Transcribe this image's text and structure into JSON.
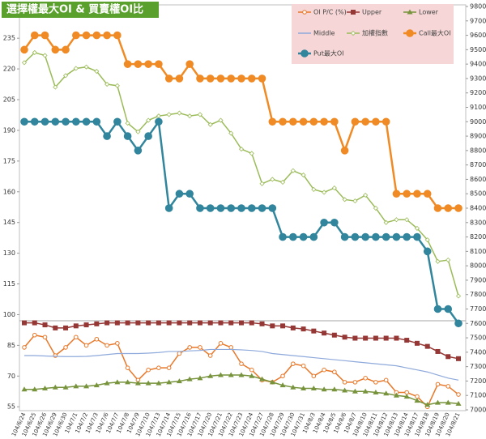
{
  "chart_data": {
    "type": "line",
    "title": "選擇權最大OI & 買賣權OI比",
    "categories": [
      "104/6/24",
      "104/6/25",
      "104/6/26",
      "104/6/29",
      "104/6/30",
      "104/7/1",
      "104/7/2",
      "104/7/3",
      "104/7/6",
      "104/7/7",
      "104/7/8",
      "104/7/9",
      "104/7/10",
      "104/7/13",
      "104/7/14",
      "104/7/15",
      "104/7/16",
      "104/7/17",
      "104/7/20",
      "104/7/21",
      "104/7/22",
      "104/7/23",
      "104/7/24",
      "104/7/27",
      "104/7/28",
      "104/7/29",
      "104/7/30",
      "104/7/31",
      "104/8/3",
      "104/8/4",
      "104/8/5",
      "104/8/6",
      "104/8/7",
      "104/8/10",
      "104/8/11",
      "104/8/12",
      "104/8/13",
      "104/8/14",
      "104/8/17",
      "104/8/18",
      "104/8/19",
      "104/8/20",
      "104/8/21"
    ],
    "ylim": [
      53.5,
      250.5
    ],
    "yticks": [
      55,
      70,
      85,
      100,
      115,
      130,
      145,
      160,
      175,
      190,
      205,
      220,
      235
    ],
    "y2lim": [
      7000,
      9800
    ],
    "y2ticks": [
      7000,
      7100,
      7200,
      7300,
      7400,
      7500,
      7600,
      7700,
      7800,
      7900,
      8000,
      8100,
      8200,
      8300,
      8400,
      8500,
      8600,
      8700,
      8800,
      8900,
      9000,
      9100,
      9200,
      9300,
      9400,
      9500,
      9600,
      9700,
      9800
    ],
    "series": [
      {
        "name": "OI P/C (%)",
        "color": "#e8782a",
        "marker": "circle",
        "axis": "y",
        "values": [
          84,
          90,
          89,
          80,
          84,
          89,
          85,
          88,
          85,
          86,
          74,
          68,
          73,
          74,
          74,
          81,
          84,
          84,
          80,
          86,
          84,
          76,
          73,
          68,
          67,
          70,
          76,
          75,
          70,
          73,
          72,
          67,
          67,
          69,
          67,
          68,
          62,
          62,
          60,
          55,
          66,
          65,
          61
        ]
      },
      {
        "name": "Upper",
        "color": "#953735",
        "marker": "square",
        "axis": "y",
        "values": [
          96,
          96,
          95,
          93.5,
          93.5,
          94.5,
          95,
          95.5,
          96,
          96,
          96,
          96,
          96,
          96,
          96,
          96,
          96,
          96,
          96,
          96,
          96,
          96,
          96,
          95.5,
          94.5,
          94.5,
          93.5,
          93,
          92,
          91,
          90,
          89,
          88.5,
          88.5,
          88.5,
          88.5,
          88.5,
          87.5,
          86,
          84.5,
          82,
          79.5,
          78.5
        ]
      },
      {
        "name": "Lower",
        "color": "#77933c",
        "marker": "triangle",
        "axis": "y",
        "values": [
          63.5,
          63.5,
          64,
          64.5,
          64.5,
          65,
          65,
          65.5,
          66.5,
          67,
          67,
          66.5,
          66.5,
          66.5,
          67,
          67.5,
          68.5,
          69,
          70,
          70.5,
          70.5,
          70.5,
          70,
          68.5,
          67,
          65.5,
          64.5,
          64,
          64,
          63.5,
          63.5,
          63,
          62.5,
          62.5,
          62,
          61.5,
          60.5,
          60,
          58,
          56,
          57,
          57,
          56.5
        ]
      },
      {
        "name": "Middle",
        "color": "#8ea9db",
        "marker": "none",
        "axis": "y",
        "values": [
          80,
          80,
          79.8,
          79.6,
          79.5,
          79.5,
          79.6,
          80,
          80.5,
          81,
          81,
          81,
          81.2,
          81.5,
          82,
          82,
          82.3,
          82.5,
          83,
          83,
          83,
          82.8,
          82.5,
          82,
          81,
          80.5,
          80,
          79.5,
          79,
          78.5,
          78,
          77.5,
          77,
          76.5,
          76,
          75.5,
          75,
          74,
          73,
          72,
          70.5,
          69,
          68
        ]
      },
      {
        "name": "加權指數",
        "color": "#9bbb59",
        "marker": "diamond",
        "axis": "y2",
        "values": [
          9410,
          9480,
          9460,
          9240,
          9320,
          9370,
          9380,
          9350,
          9260,
          9250,
          8990,
          8930,
          9010,
          9040,
          9050,
          9060,
          9040,
          9050,
          8980,
          9010,
          8920,
          8810,
          8780,
          8570,
          8600,
          8580,
          8660,
          8630,
          8530,
          8510,
          8540,
          8460,
          8450,
          8490,
          8400,
          8300,
          8320,
          8320,
          8260,
          8180,
          8030,
          8040,
          7790
        ]
      },
      {
        "name": "Call最大OI",
        "color": "#f08a24",
        "marker": "bigcircle",
        "axis": "y2",
        "values": [
          9500,
          9600,
          9600,
          9500,
          9500,
          9600,
          9600,
          9600,
          9600,
          9600,
          9400,
          9400,
          9400,
          9400,
          9300,
          9300,
          9400,
          9300,
          9300,
          9300,
          9300,
          9300,
          9300,
          9300,
          9000,
          9000,
          9000,
          9000,
          9000,
          9000,
          9000,
          8800,
          9000,
          9000,
          9000,
          9000,
          8500,
          8500,
          8500,
          8500,
          8400,
          8400,
          8400
        ]
      },
      {
        "name": "Put最大OI",
        "color": "#31859c",
        "marker": "bigcircle",
        "axis": "y2",
        "values": [
          9000,
          9000,
          9000,
          9000,
          9000,
          9000,
          9000,
          9000,
          8900,
          9000,
          8900,
          8800,
          8900,
          9000,
          8400,
          8500,
          8500,
          8400,
          8400,
          8400,
          8400,
          8400,
          8400,
          8400,
          8400,
          8200,
          8200,
          8200,
          8200,
          8300,
          8300,
          8200,
          8200,
          8200,
          8200,
          8200,
          8200,
          8200,
          8200,
          8100,
          7700,
          7700,
          7600
        ]
      }
    ]
  }
}
